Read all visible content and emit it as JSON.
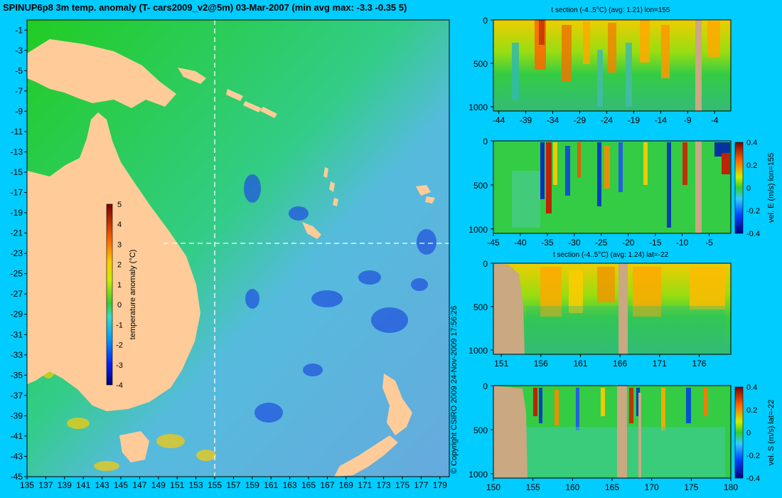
{
  "main_title": "SPINUP6p8 3m temp. anomaly (T- cars2009_v2@5m) 03-Mar-2007 (min avg max: -3.3 -0.35 5)",
  "copyright": "© Copyright CSIRO 2009   24-Nov-2009 17:56:26",
  "map": {
    "lon_range": [
      135,
      180
    ],
    "lat_range": [
      -45,
      0
    ],
    "x_ticks": [
      "135",
      "137",
      "139",
      "141",
      "143",
      "145",
      "147",
      "149",
      "151",
      "153",
      "155",
      "157",
      "159",
      "161",
      "163",
      "165",
      "167",
      "169",
      "171",
      "173",
      "175",
      "177",
      "179"
    ],
    "y_ticks": [
      "-1",
      "-3",
      "-5",
      "-7",
      "-9",
      "-11",
      "-13",
      "-15",
      "-17",
      "-19",
      "-21",
      "-23",
      "-25",
      "-27",
      "-29",
      "-31",
      "-33",
      "-35",
      "-37",
      "-39",
      "-41",
      "-43",
      "-45"
    ],
    "section_lon": 155,
    "section_lat": -22,
    "colorbar": {
      "label": "temperature anomaly (°C)",
      "ticks": [
        "5",
        "4",
        "3",
        "2",
        "1",
        "0",
        "-1",
        "-2",
        "-3",
        "-4"
      ]
    }
  },
  "panels": [
    {
      "id": "t-lon",
      "title": "t section (-4..5°C) (avg: 1.21) lon=155",
      "x_ticks": [
        "-44",
        "-39",
        "-34",
        "-29",
        "-24",
        "-19",
        "-14",
        "-9",
        "-4"
      ],
      "y_ticks": [
        "0",
        "500",
        "1000"
      ]
    },
    {
      "id": "v-lon",
      "title": "",
      "x_ticks": [
        "-45",
        "-40",
        "-35",
        "-30",
        "-25",
        "-20",
        "-15",
        "-10",
        "-5"
      ],
      "y_ticks": [
        "0",
        "500",
        "1000"
      ],
      "colorbar": {
        "label": "vel. E (m/s) lon=155",
        "ticks": [
          "0.4",
          "0.2",
          "0",
          "-0.2",
          "-0.4"
        ]
      }
    },
    {
      "id": "t-lat",
      "title": "t section (-4..5°C) (avg: 1.24) lat=-22",
      "x_ticks": [
        "151",
        "156",
        "161",
        "166",
        "171",
        "176"
      ],
      "y_ticks": [
        "0",
        "500",
        "1000"
      ]
    },
    {
      "id": "v-lat",
      "title": "",
      "x_ticks": [
        "150",
        "155",
        "160",
        "165",
        "170",
        "175",
        "180"
      ],
      "y_ticks": [
        "0",
        "500",
        "1000"
      ],
      "colorbar": {
        "label": "vel. S (m/s) lat=-22",
        "ticks": [
          "0.4",
          "0.2",
          "0",
          "-0.2",
          "-0.4"
        ]
      }
    }
  ],
  "colors": {
    "background": "#00ccff",
    "land": "#ffcc99",
    "section_land": "#c9a882",
    "ocean_warm": "#22cc22",
    "ocean_cool": "#66ccdd"
  }
}
